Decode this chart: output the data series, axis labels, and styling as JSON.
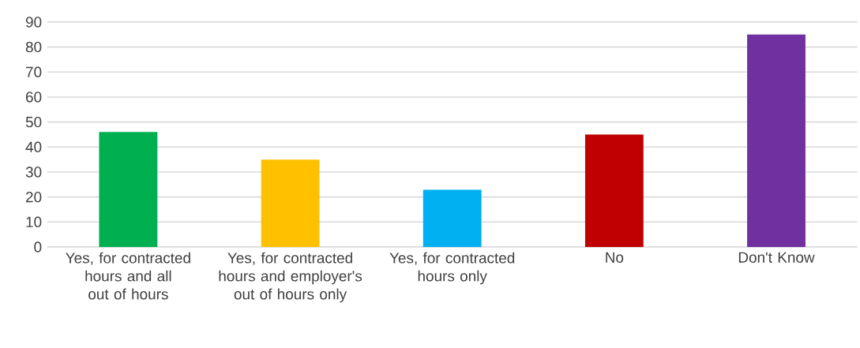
{
  "chart_data": {
    "type": "bar",
    "categories": [
      "Yes, for contracted hours and all out of hours",
      "Yes, for contracted hours and employer's out of hours only",
      "Yes, for contracted hours only",
      "No",
      "Don't Know"
    ],
    "values": [
      46,
      35,
      23,
      45,
      85
    ],
    "colors": [
      "#00b050",
      "#ffc000",
      "#00b0f0",
      "#c00000",
      "#7030a0"
    ],
    "ylim": [
      0,
      90
    ],
    "yticks": [
      0,
      10,
      20,
      30,
      40,
      50,
      60,
      70,
      80,
      90
    ],
    "grid": "y"
  }
}
